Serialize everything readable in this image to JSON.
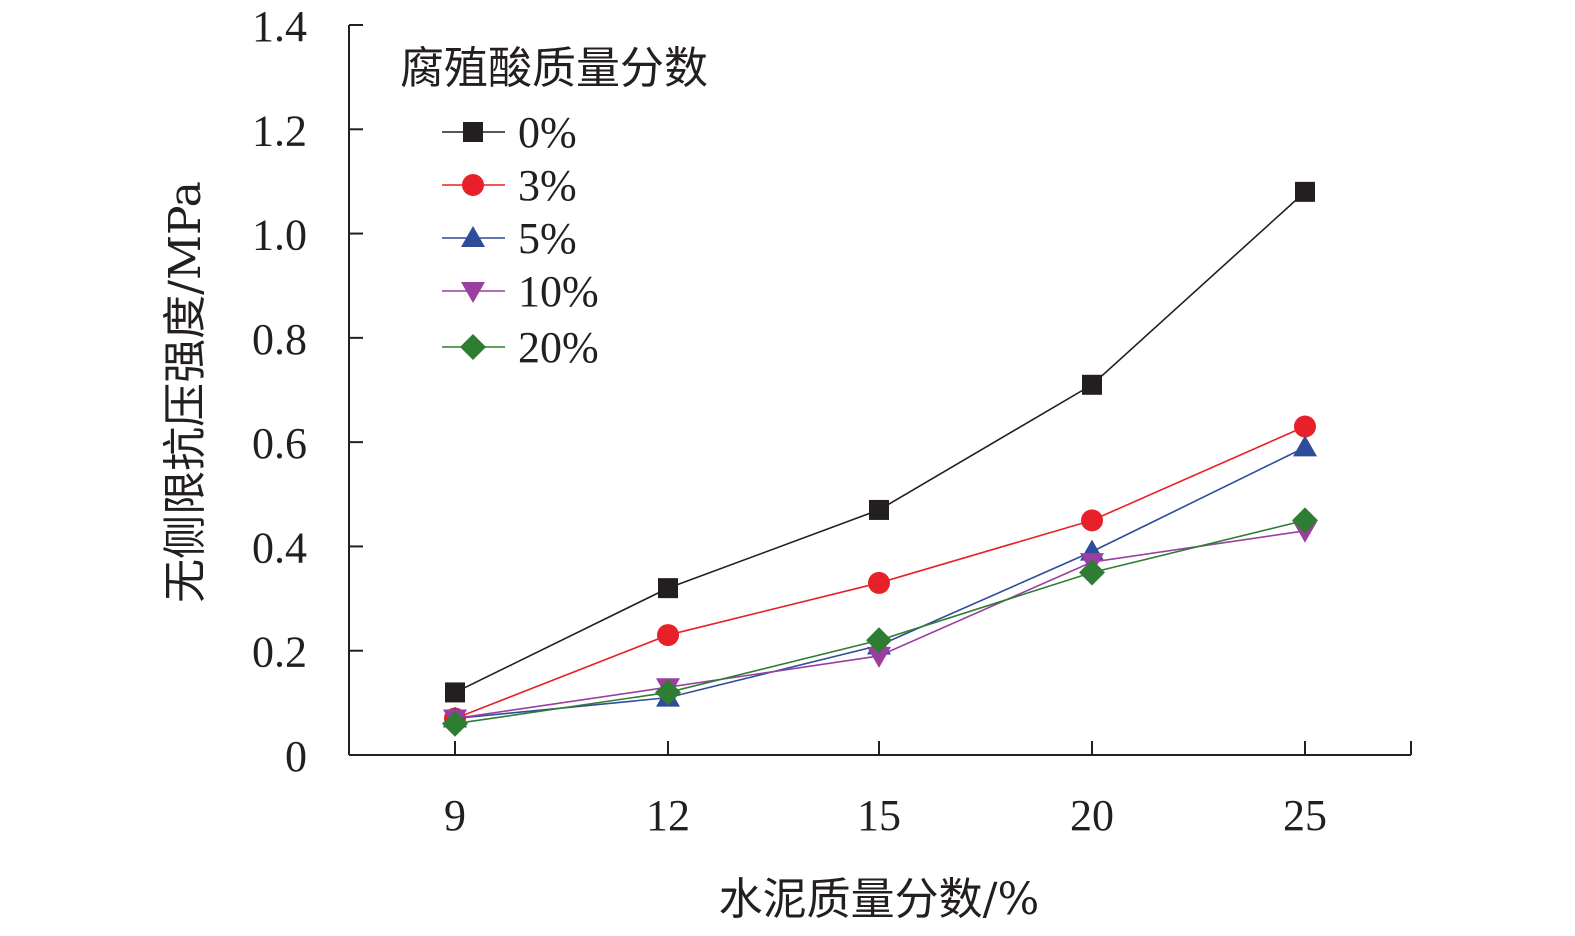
{
  "chart_data": {
    "type": "line",
    "title": "",
    "xlabel": "水泥质量分数/%",
    "ylabel": "无侧限抗压强度/MPa",
    "categories": [
      "9",
      "12",
      "15",
      "20",
      "25"
    ],
    "ylim": [
      0,
      1.4
    ],
    "yticks": [
      "0",
      "0.2",
      "0.4",
      "0.6",
      "0.8",
      "1.0",
      "1.2",
      "1.4"
    ],
    "grid": false,
    "legend": {
      "title": "腐殖酸质量分数",
      "placement": "top-left"
    },
    "series": [
      {
        "name": "0%",
        "color": "#231f20",
        "marker": "square",
        "values": [
          0.12,
          0.32,
          0.47,
          0.71,
          1.08
        ]
      },
      {
        "name": "3%",
        "color": "#e8202a",
        "marker": "circle",
        "values": [
          0.07,
          0.23,
          0.33,
          0.45,
          0.63
        ]
      },
      {
        "name": "5%",
        "color": "#2f4c9b",
        "marker": "triangle-up",
        "values": [
          0.07,
          0.11,
          0.21,
          0.39,
          0.59
        ]
      },
      {
        "name": "10%",
        "color": "#9a3fa0",
        "marker": "triangle-down",
        "values": [
          0.07,
          0.13,
          0.19,
          0.37,
          0.43
        ]
      },
      {
        "name": "20%",
        "color": "#2e7d32",
        "marker": "diamond",
        "values": [
          0.06,
          0.12,
          0.22,
          0.35,
          0.45
        ]
      }
    ]
  }
}
